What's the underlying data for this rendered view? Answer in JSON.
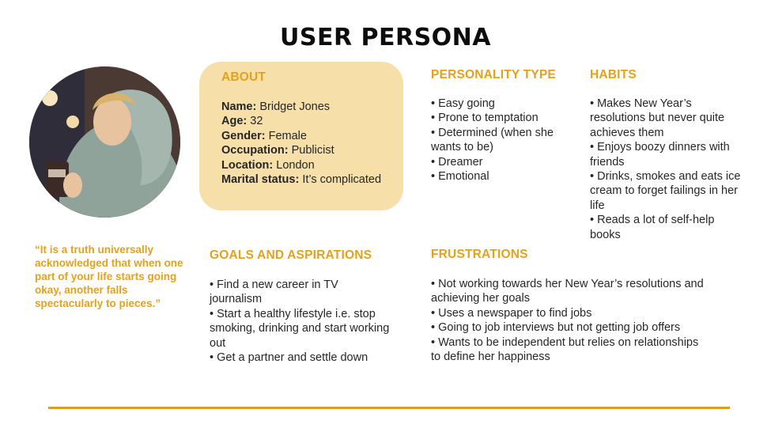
{
  "title": "USER PERSONA",
  "quote": "“It is a truth universally acknowledged that when one part of your life starts going okay, another falls spectacularly to pieces.”",
  "about": {
    "heading": "ABOUT",
    "fields": [
      {
        "label": "Name:",
        "value": " Bridget Jones"
      },
      {
        "label": "Age:",
        "value": " 32"
      },
      {
        "label": "Gender:",
        "value": " Female"
      },
      {
        "label": "Occupation:",
        "value": " Publicist"
      },
      {
        "label": "Location:",
        "value": " London"
      },
      {
        "label": "Marital status:",
        "value": " It’s complicated"
      }
    ]
  },
  "personality": {
    "heading": "PERSONALITY TYPE",
    "items": [
      "• Easy going",
      "• Prone to temptation",
      "• Determined (when she wants to be)",
      "• Dreamer",
      "• Emotional"
    ]
  },
  "habits": {
    "heading": "HABITS",
    "items": [
      "• Makes New Year’s resolutions but never quite achieves them",
      "• Enjoys boozy dinners with friends",
      "• Drinks, smokes and eats ice cream to forget failings in her life",
      "• Reads a lot of self-help books"
    ]
  },
  "goals": {
    "heading": "GOALS AND ASPIRATIONS",
    "items": [
      "• Find a new career in TV journalism",
      "• Start a healthy lifestyle i.e. stop smoking, drinking and start working out",
      "• Get a partner and settle down"
    ]
  },
  "frustrations": {
    "heading": "FRUSTRATIONS",
    "items": [
      "• Not working towards her New Year’s resolutions and achieving her goals",
      "• Uses a newspaper to find jobs",
      "• Going to job interviews but not getting job offers",
      "• Wants to be independent but relies on relationships to define her happiness"
    ]
  },
  "colors": {
    "accent": "#e3a21d",
    "about_bg": "#f6dfa8",
    "rule": "#d9a01f"
  },
  "photo_icon": "persona-photo"
}
